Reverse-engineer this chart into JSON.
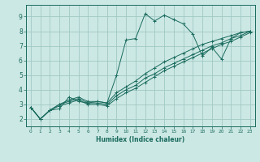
{
  "xlabel": "Humidex (Indice chaleur)",
  "ylabel": "",
  "xlim": [
    -0.5,
    23.5
  ],
  "ylim": [
    1.5,
    9.8
  ],
  "xticks": [
    0,
    1,
    2,
    3,
    4,
    5,
    6,
    7,
    8,
    9,
    10,
    11,
    12,
    13,
    14,
    15,
    16,
    17,
    18,
    19,
    20,
    21,
    22,
    23
  ],
  "yticks": [
    2,
    3,
    4,
    5,
    6,
    7,
    8,
    9
  ],
  "bg_color": "#cce8e4",
  "grid_color": "#a0c8c4",
  "line_color": "#1a6b5e",
  "series": [
    {
      "x": [
        0,
        1,
        2,
        3,
        4,
        5,
        6,
        7,
        8,
        9,
        10,
        11,
        12,
        13,
        14,
        15,
        16,
        17,
        18,
        19,
        20,
        21,
        22,
        23
      ],
      "y": [
        2.8,
        2.0,
        2.6,
        2.7,
        3.5,
        3.2,
        3.1,
        3.2,
        3.1,
        5.0,
        7.4,
        7.5,
        9.2,
        8.7,
        9.1,
        8.8,
        8.5,
        7.8,
        6.3,
        6.9,
        6.1,
        7.5,
        7.9,
        8.0
      ]
    },
    {
      "x": [
        0,
        1,
        2,
        3,
        4,
        5,
        6,
        7,
        8,
        9,
        10,
        11,
        12,
        13,
        14,
        15,
        16,
        17,
        18,
        19,
        20,
        21,
        22,
        23
      ],
      "y": [
        2.8,
        2.0,
        2.6,
        3.0,
        3.3,
        3.5,
        3.2,
        3.2,
        3.1,
        3.8,
        4.2,
        4.6,
        5.1,
        5.5,
        5.9,
        6.2,
        6.5,
        6.8,
        7.1,
        7.3,
        7.5,
        7.7,
        7.9,
        8.0
      ]
    },
    {
      "x": [
        0,
        1,
        2,
        3,
        4,
        5,
        6,
        7,
        8,
        9,
        10,
        11,
        12,
        13,
        14,
        15,
        16,
        17,
        18,
        19,
        20,
        21,
        22,
        23
      ],
      "y": [
        2.8,
        2.0,
        2.6,
        3.0,
        3.2,
        3.4,
        3.1,
        3.1,
        3.0,
        3.6,
        4.0,
        4.3,
        4.8,
        5.1,
        5.5,
        5.8,
        6.1,
        6.4,
        6.7,
        7.0,
        7.2,
        7.5,
        7.7,
        8.0
      ]
    },
    {
      "x": [
        0,
        1,
        2,
        3,
        4,
        5,
        6,
        7,
        8,
        9,
        10,
        11,
        12,
        13,
        14,
        15,
        16,
        17,
        18,
        19,
        20,
        21,
        22,
        23
      ],
      "y": [
        2.8,
        2.0,
        2.6,
        2.9,
        3.1,
        3.3,
        3.0,
        3.0,
        2.9,
        3.4,
        3.8,
        4.1,
        4.5,
        4.9,
        5.3,
        5.6,
        5.9,
        6.2,
        6.5,
        6.8,
        7.1,
        7.3,
        7.6,
        7.9
      ]
    }
  ]
}
